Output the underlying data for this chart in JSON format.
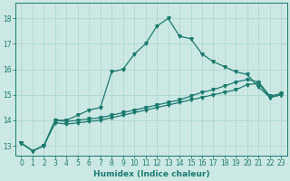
{
  "xlabel": "Humidex (Indice chaleur)",
  "bg_color": "#cce8e4",
  "grid_color": "#aad4ce",
  "line_color": "#1a7a6e",
  "xlim_min": -0.5,
  "xlim_max": 23.5,
  "ylim_min": 12.6,
  "ylim_max": 18.6,
  "yticks": [
    13,
    14,
    15,
    16,
    17,
    18
  ],
  "xticks": [
    0,
    1,
    2,
    3,
    4,
    5,
    6,
    7,
    8,
    9,
    10,
    11,
    12,
    13,
    14,
    15,
    16,
    17,
    18,
    19,
    20,
    21,
    22,
    23
  ],
  "line1_x": [
    0,
    1,
    2,
    3,
    4,
    5,
    6,
    7,
    8,
    9,
    10,
    11,
    12,
    13,
    14,
    15,
    16,
    17,
    18,
    19,
    20,
    21,
    22,
    23
  ],
  "line1_y": [
    13.1,
    12.8,
    13.0,
    14.0,
    14.0,
    14.2,
    14.4,
    14.5,
    15.9,
    16.0,
    16.6,
    17.0,
    17.7,
    18.0,
    17.3,
    17.2,
    16.6,
    16.3,
    16.1,
    15.9,
    15.8,
    15.3,
    14.9,
    15.0
  ],
  "line2_x": [
    0,
    1,
    2,
    3,
    4,
    5,
    6,
    7,
    8,
    9,
    10,
    11,
    12,
    13,
    14,
    15,
    16,
    17,
    18,
    19,
    20,
    21,
    22,
    23
  ],
  "line2_y": [
    13.1,
    12.8,
    13.0,
    14.0,
    13.95,
    14.0,
    14.05,
    14.1,
    14.2,
    14.3,
    14.4,
    14.5,
    14.6,
    14.7,
    14.8,
    14.95,
    15.1,
    15.2,
    15.35,
    15.5,
    15.6,
    15.5,
    14.95,
    15.05
  ],
  "line3_x": [
    0,
    1,
    2,
    3,
    4,
    5,
    6,
    7,
    8,
    9,
    10,
    11,
    12,
    13,
    14,
    15,
    16,
    17,
    18,
    19,
    20,
    21,
    22,
    23
  ],
  "line3_y": [
    13.1,
    12.8,
    13.0,
    13.9,
    13.85,
    13.9,
    13.95,
    14.0,
    14.1,
    14.2,
    14.3,
    14.4,
    14.5,
    14.6,
    14.7,
    14.8,
    14.9,
    15.0,
    15.1,
    15.2,
    15.4,
    15.45,
    14.9,
    15.0
  ]
}
